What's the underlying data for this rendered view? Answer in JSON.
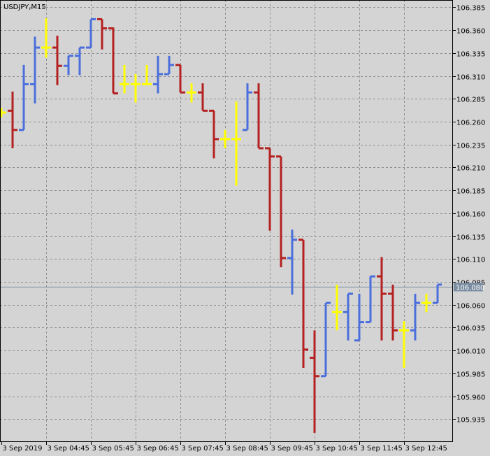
{
  "chart_data": {
    "type": "ohlc",
    "title": "USDJPY,M15",
    "categories": [
      "3 Sep 2019",
      null,
      null,
      null,
      "3 Sep 04:45",
      null,
      null,
      null,
      "3 Sep 05:45",
      null,
      null,
      null,
      "3 Sep 06:45",
      null,
      null,
      null,
      "3 Sep 07:45",
      null,
      null,
      null,
      "3 Sep 08:45",
      null,
      null,
      null,
      "3 Sep 09:45",
      null,
      null,
      null,
      "3 Sep 10:45",
      null,
      null,
      null,
      "3 Sep 11:45",
      null,
      null,
      null,
      "3 Sep 12:45",
      null,
      null,
      null
    ],
    "open": [
      106.27,
      106.272,
      106.251,
      106.301,
      106.341,
      106.341,
      106.321,
      106.332,
      106.341,
      106.372,
      106.362,
      106.301,
      106.301,
      106.301,
      106.301,
      106.312,
      106.322,
      106.292,
      106.292,
      106.272,
      106.241,
      106.241,
      106.251,
      106.292,
      106.231,
      106.222,
      106.111,
      106.131,
      106.002,
      105.982,
      106.052,
      106.052,
      106.021,
      106.041,
      106.091,
      106.072,
      106.032,
      106.032,
      106.062,
      106.062
    ],
    "high": [
      106.275,
      106.293,
      106.322,
      106.353,
      106.373,
      106.354,
      106.332,
      106.341,
      106.372,
      106.372,
      106.363,
      106.322,
      106.312,
      106.322,
      106.332,
      106.332,
      106.322,
      106.302,
      106.302,
      106.272,
      106.251,
      106.282,
      106.302,
      106.302,
      106.231,
      106.222,
      106.142,
      106.131,
      106.032,
      106.062,
      106.082,
      106.072,
      106.072,
      106.091,
      106.112,
      106.082,
      106.042,
      106.072,
      106.072,
      106.082
    ],
    "low": [
      106.265,
      106.231,
      106.251,
      106.28,
      106.33,
      106.3,
      106.311,
      106.311,
      106.341,
      106.339,
      106.291,
      106.291,
      106.281,
      106.301,
      106.291,
      106.312,
      106.292,
      106.281,
      106.272,
      106.22,
      106.231,
      106.19,
      106.251,
      106.231,
      106.141,
      106.101,
      106.071,
      105.991,
      105.92,
      105.982,
      106.032,
      106.021,
      106.021,
      106.041,
      106.021,
      106.021,
      105.991,
      106.021,
      106.052,
      106.062
    ],
    "close": [
      106.27,
      106.251,
      106.301,
      106.341,
      106.341,
      106.321,
      106.332,
      106.341,
      106.372,
      106.362,
      106.291,
      106.301,
      106.301,
      106.301,
      106.312,
      106.322,
      106.292,
      106.292,
      106.272,
      106.241,
      106.241,
      106.241,
      106.292,
      106.231,
      106.222,
      106.111,
      106.131,
      106.011,
      105.982,
      106.062,
      106.052,
      106.072,
      106.041,
      106.091,
      106.072,
      106.032,
      106.032,
      106.062,
      106.062,
      106.082
    ],
    "up_color": "#4a6fdc",
    "down_color": "#b52121",
    "doji_color": "#ffff00",
    "ylim": [
      105.91,
      106.393
    ],
    "yticks": [
      106.385,
      {
        "value": 106.36,
        "label": "106.360"
      },
      106.335,
      {
        "value": 106.31,
        "label": "106.310"
      },
      106.285,
      {
        "value": 106.26,
        "label": "106.260"
      },
      106.235,
      {
        "value": 106.21,
        "label": "106.210"
      },
      106.185,
      {
        "value": 106.16,
        "label": "106.160"
      },
      106.135,
      {
        "value": 106.11,
        "label": "106.110"
      },
      106.085,
      {
        "value": 106.06,
        "label": "106.060"
      },
      106.035,
      {
        "value": 106.01,
        "label": "106.010"
      },
      105.985,
      {
        "value": 105.96,
        "label": "105.960"
      },
      105.935
    ],
    "price_line": {
      "value": 106.08,
      "label": "106.080"
    },
    "grid": true
  }
}
